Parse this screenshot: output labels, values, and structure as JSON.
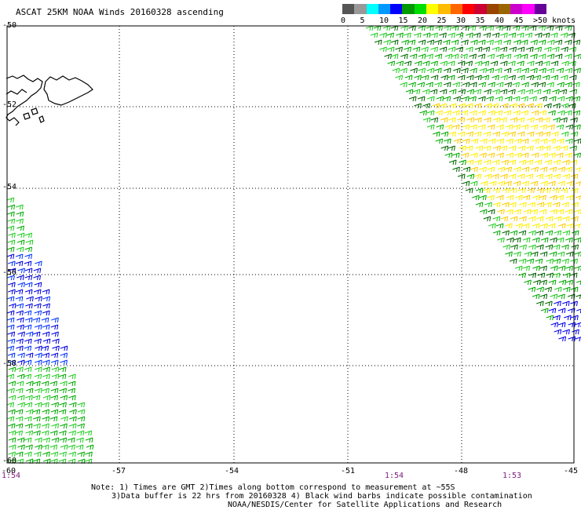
{
  "title": "ASCAT 25KM NOAA Winds 20160328 ascending",
  "colorbar": {
    "colors": [
      "#555555",
      "#999999",
      "#00ffff",
      "#0099ff",
      "#0000ff",
      "#009900",
      "#00dd00",
      "#ffff00",
      "#ffbb00",
      "#ff6600",
      "#ff0000",
      "#cc0033",
      "#994400",
      "#996600",
      "#cc00cc",
      "#ff00ff",
      "#660099"
    ],
    "labels": [
      "0",
      "5",
      "10",
      "15",
      "20",
      "25",
      "30",
      "35",
      "40",
      "45",
      ">50 knots"
    ]
  },
  "axes": {
    "lat_labels": [
      "-50",
      "-52",
      "-54",
      "-56",
      "-58",
      "-60"
    ],
    "lon_labels": [
      "-60",
      "-57",
      "-54",
      "-51",
      "-48",
      "-45"
    ],
    "lat_range": [
      -60,
      -50
    ],
    "lon_range": [
      -60,
      -45
    ]
  },
  "times": [
    "1:54",
    "1:54",
    "1:53"
  ],
  "notes": {
    "line1": "Note: 1) Times are GMT 2)Times along bottom correspond to measurement at ~55S",
    "line2": "3)Data buffer is 22 hrs from 20160328 4) Black wind barbs indicate possible contamination",
    "line3": "NOAA/NESDIS/Center for Satellite Applications and Research"
  },
  "swaths": [
    {
      "name": "east-swath",
      "colors": [
        "#00aa00",
        "#22cc22",
        "#006600",
        "#ffee00",
        "#ffcc00",
        "#0000ee"
      ]
    },
    {
      "name": "west-swath",
      "colors": [
        "#0000dd",
        "#0033ff",
        "#22cc22",
        "#00aa00"
      ]
    }
  ]
}
